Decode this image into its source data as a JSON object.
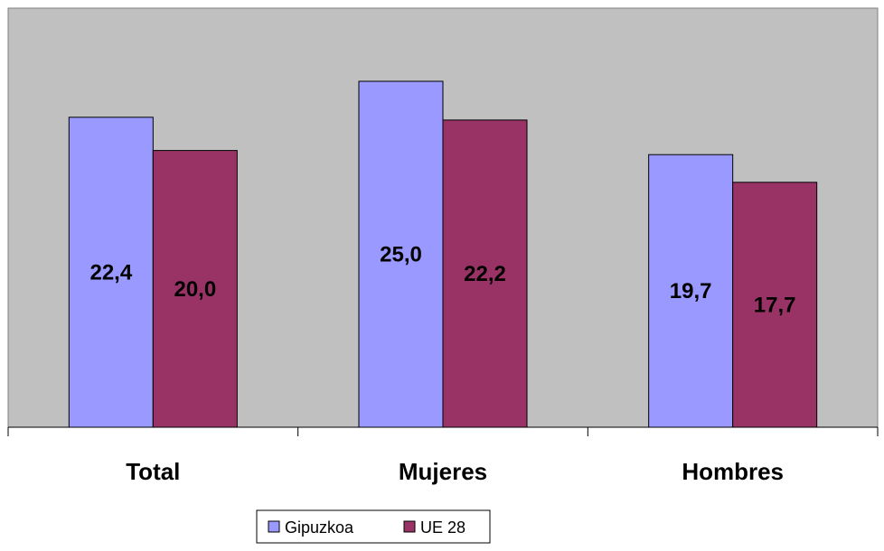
{
  "colors": {
    "plot_background": "#c0c0c0",
    "gipuzkoa": "#9999ff",
    "ue28": "#993366"
  },
  "chart_data": {
    "type": "bar",
    "categories": [
      "Total",
      "Mujeres",
      "Hombres"
    ],
    "series": [
      {
        "name": "Gipuzkoa",
        "values": [
          22.4,
          25.0,
          19.7
        ],
        "labels": [
          "22,4",
          "25,0",
          "19,7"
        ]
      },
      {
        "name": "UE 28",
        "values": [
          20.0,
          22.2,
          17.7
        ],
        "labels": [
          "20,0",
          "22,2",
          "17,7"
        ]
      }
    ],
    "ylim": [
      0,
      30
    ],
    "grid": false,
    "legend_position": "bottom"
  }
}
